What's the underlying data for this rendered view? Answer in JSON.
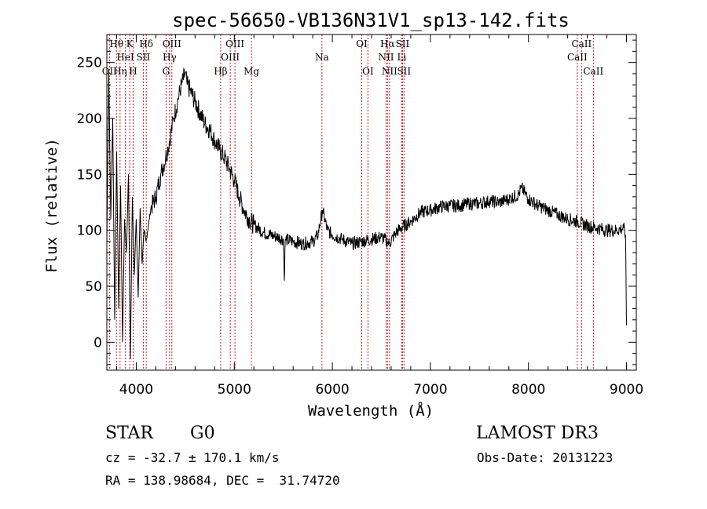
{
  "chart_data": {
    "type": "line",
    "title": "spec-56650-VB136N31V1_sp13-142.fits",
    "xlabel": "Wavelength (Å)",
    "ylabel": "Flux (relative)",
    "xlim": [
      3700,
      9100
    ],
    "ylim": [
      -25,
      275
    ],
    "xticks": [
      4000,
      5000,
      6000,
      7000,
      8000,
      9000
    ],
    "yticks": [
      0,
      50,
      100,
      150,
      200,
      250
    ],
    "grid": false,
    "series": [
      {
        "name": "flux",
        "x": [
          3700,
          3720,
          3740,
          3760,
          3780,
          3800,
          3820,
          3840,
          3860,
          3880,
          3900,
          3920,
          3940,
          3960,
          3980,
          4000,
          4020,
          4040,
          4060,
          4080,
          4100,
          4150,
          4200,
          4250,
          4300,
          4340,
          4380,
          4420,
          4460,
          4500,
          4520,
          4550,
          4600,
          4650,
          4700,
          4750,
          4800,
          4850,
          4900,
          4950,
          5000,
          5050,
          5100,
          5150,
          5200,
          5300,
          5400,
          5450,
          5500,
          5510,
          5520,
          5600,
          5700,
          5800,
          5850,
          5900,
          5950,
          6000,
          6100,
          6200,
          6300,
          6400,
          6500,
          6560,
          6580,
          6650,
          6700,
          6800,
          6900,
          7000,
          7100,
          7200,
          7300,
          7400,
          7500,
          7600,
          7700,
          7800,
          7900,
          7930,
          8000,
          8100,
          8200,
          8300,
          8400,
          8500,
          8600,
          8700,
          8800,
          8900,
          8970,
          8990,
          9000
        ],
        "y": [
          90,
          240,
          110,
          200,
          20,
          170,
          30,
          140,
          0,
          110,
          80,
          150,
          -15,
          130,
          60,
          110,
          40,
          120,
          70,
          100,
          90,
          120,
          130,
          150,
          165,
          180,
          200,
          215,
          230,
          240,
          230,
          225,
          215,
          205,
          195,
          190,
          180,
          172,
          165,
          155,
          145,
          130,
          118,
          110,
          105,
          98,
          95,
          94,
          92,
          55,
          92,
          90,
          88,
          90,
          95,
          118,
          100,
          96,
          92,
          88,
          90,
          92,
          94,
          90,
          88,
          98,
          102,
          108,
          116,
          118,
          121,
          122,
          122,
          124,
          124,
          126,
          125,
          128,
          132,
          138,
          128,
          122,
          118,
          114,
          110,
          108,
          104,
          102,
          100,
          100,
          102,
          96,
          15
        ]
      }
    ],
    "line_labels": [
      {
        "label": "OII",
        "wave": 3727,
        "row": 3
      },
      {
        "label": "Hθ",
        "wave": 3798,
        "row": 1
      },
      {
        "label": "Hη",
        "wave": 3835,
        "row": 3
      },
      {
        "label": "HeI",
        "wave": 3889,
        "row": 2
      },
      {
        "label": "K",
        "wave": 3934,
        "row": 1
      },
      {
        "label": "H",
        "wave": 3968,
        "row": 3
      },
      {
        "label": "SII",
        "wave": 4072,
        "row": 2
      },
      {
        "label": "Hδ",
        "wave": 4102,
        "row": 1
      },
      {
        "label": "G",
        "wave": 4304,
        "row": 3
      },
      {
        "label": "Hγ",
        "wave": 4340,
        "row": 2
      },
      {
        "label": "OIII",
        "wave": 4363,
        "row": 1
      },
      {
        "label": "Hβ",
        "wave": 4861,
        "row": 3
      },
      {
        "label": "OIII",
        "wave": 4959,
        "row": 2
      },
      {
        "label": "OIII",
        "wave": 5007,
        "row": 1
      },
      {
        "label": "Mg",
        "wave": 5175,
        "row": 3
      },
      {
        "label": "Na",
        "wave": 5894,
        "row": 2
      },
      {
        "label": "OI",
        "wave": 6300,
        "row": 1
      },
      {
        "label": "OI",
        "wave": 6363,
        "row": 3
      },
      {
        "label": "NII",
        "wave": 6548,
        "row": 2
      },
      {
        "label": "Hα",
        "wave": 6563,
        "row": 1
      },
      {
        "label": "NII",
        "wave": 6583,
        "row": 3
      },
      {
        "label": "Li",
        "wave": 6708,
        "row": 2
      },
      {
        "label": "SII",
        "wave": 6716,
        "row": 1
      },
      {
        "label": "SII",
        "wave": 6731,
        "row": 3
      },
      {
        "label": "CaII",
        "wave": 8498,
        "row": 2
      },
      {
        "label": "CaII",
        "wave": 8542,
        "row": 1
      },
      {
        "label": "CaII",
        "wave": 8662,
        "row": 3
      }
    ]
  },
  "info": {
    "class": "STAR",
    "subclass": "G0",
    "survey": "LAMOST DR3",
    "cz": "cz = -32.7 ± 170.1 km/s",
    "obs_date": "Obs-Date: 20131223",
    "coords": "RA = 138.98684, DEC =  31.74720"
  }
}
